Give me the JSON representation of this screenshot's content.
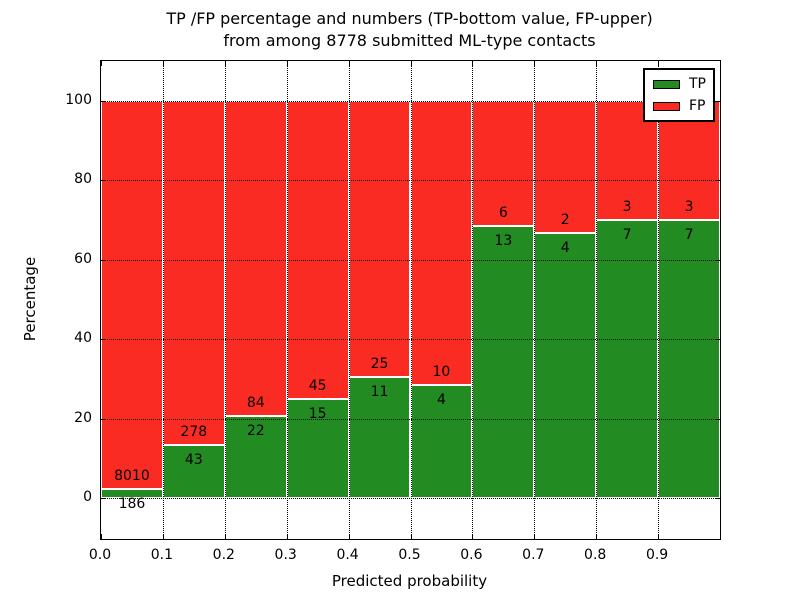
{
  "chart_data": {
    "type": "bar",
    "stacked": true,
    "percent_normalized": true,
    "title": [
      "TP /FP percentage and numbers (TP-bottom value, FP-upper)",
      "from among 8778 submitted ML-type contacts"
    ],
    "xlabel": "Predicted probability",
    "ylabel": "Percentage",
    "xlim": [
      0.0,
      1.0
    ],
    "ylim": [
      -10,
      110
    ],
    "xticks": [
      "0.0",
      "0.1",
      "0.2",
      "0.3",
      "0.4",
      "0.5",
      "0.6",
      "0.7",
      "0.8",
      "0.9"
    ],
    "yticks": [
      "0",
      "20",
      "40",
      "60",
      "80",
      "100"
    ],
    "grid_style": "dotted",
    "bin_width": 0.1,
    "bin_starts": [
      0.0,
      0.1,
      0.2,
      0.3,
      0.4,
      0.5,
      0.6,
      0.7,
      0.8,
      0.9
    ],
    "series": [
      {
        "name": "TP",
        "color": "#228b22",
        "values": [
          186,
          43,
          22,
          15,
          11,
          4,
          13,
          4,
          7,
          7
        ]
      },
      {
        "name": "FP",
        "color": "#f92b22",
        "values": [
          8010,
          278,
          84,
          45,
          25,
          10,
          6,
          2,
          3,
          3
        ]
      }
    ],
    "legend": {
      "position": "upper-right",
      "items": [
        {
          "label": "TP",
          "color": "#228b22"
        },
        {
          "label": "FP",
          "color": "#f92b22"
        }
      ]
    }
  }
}
